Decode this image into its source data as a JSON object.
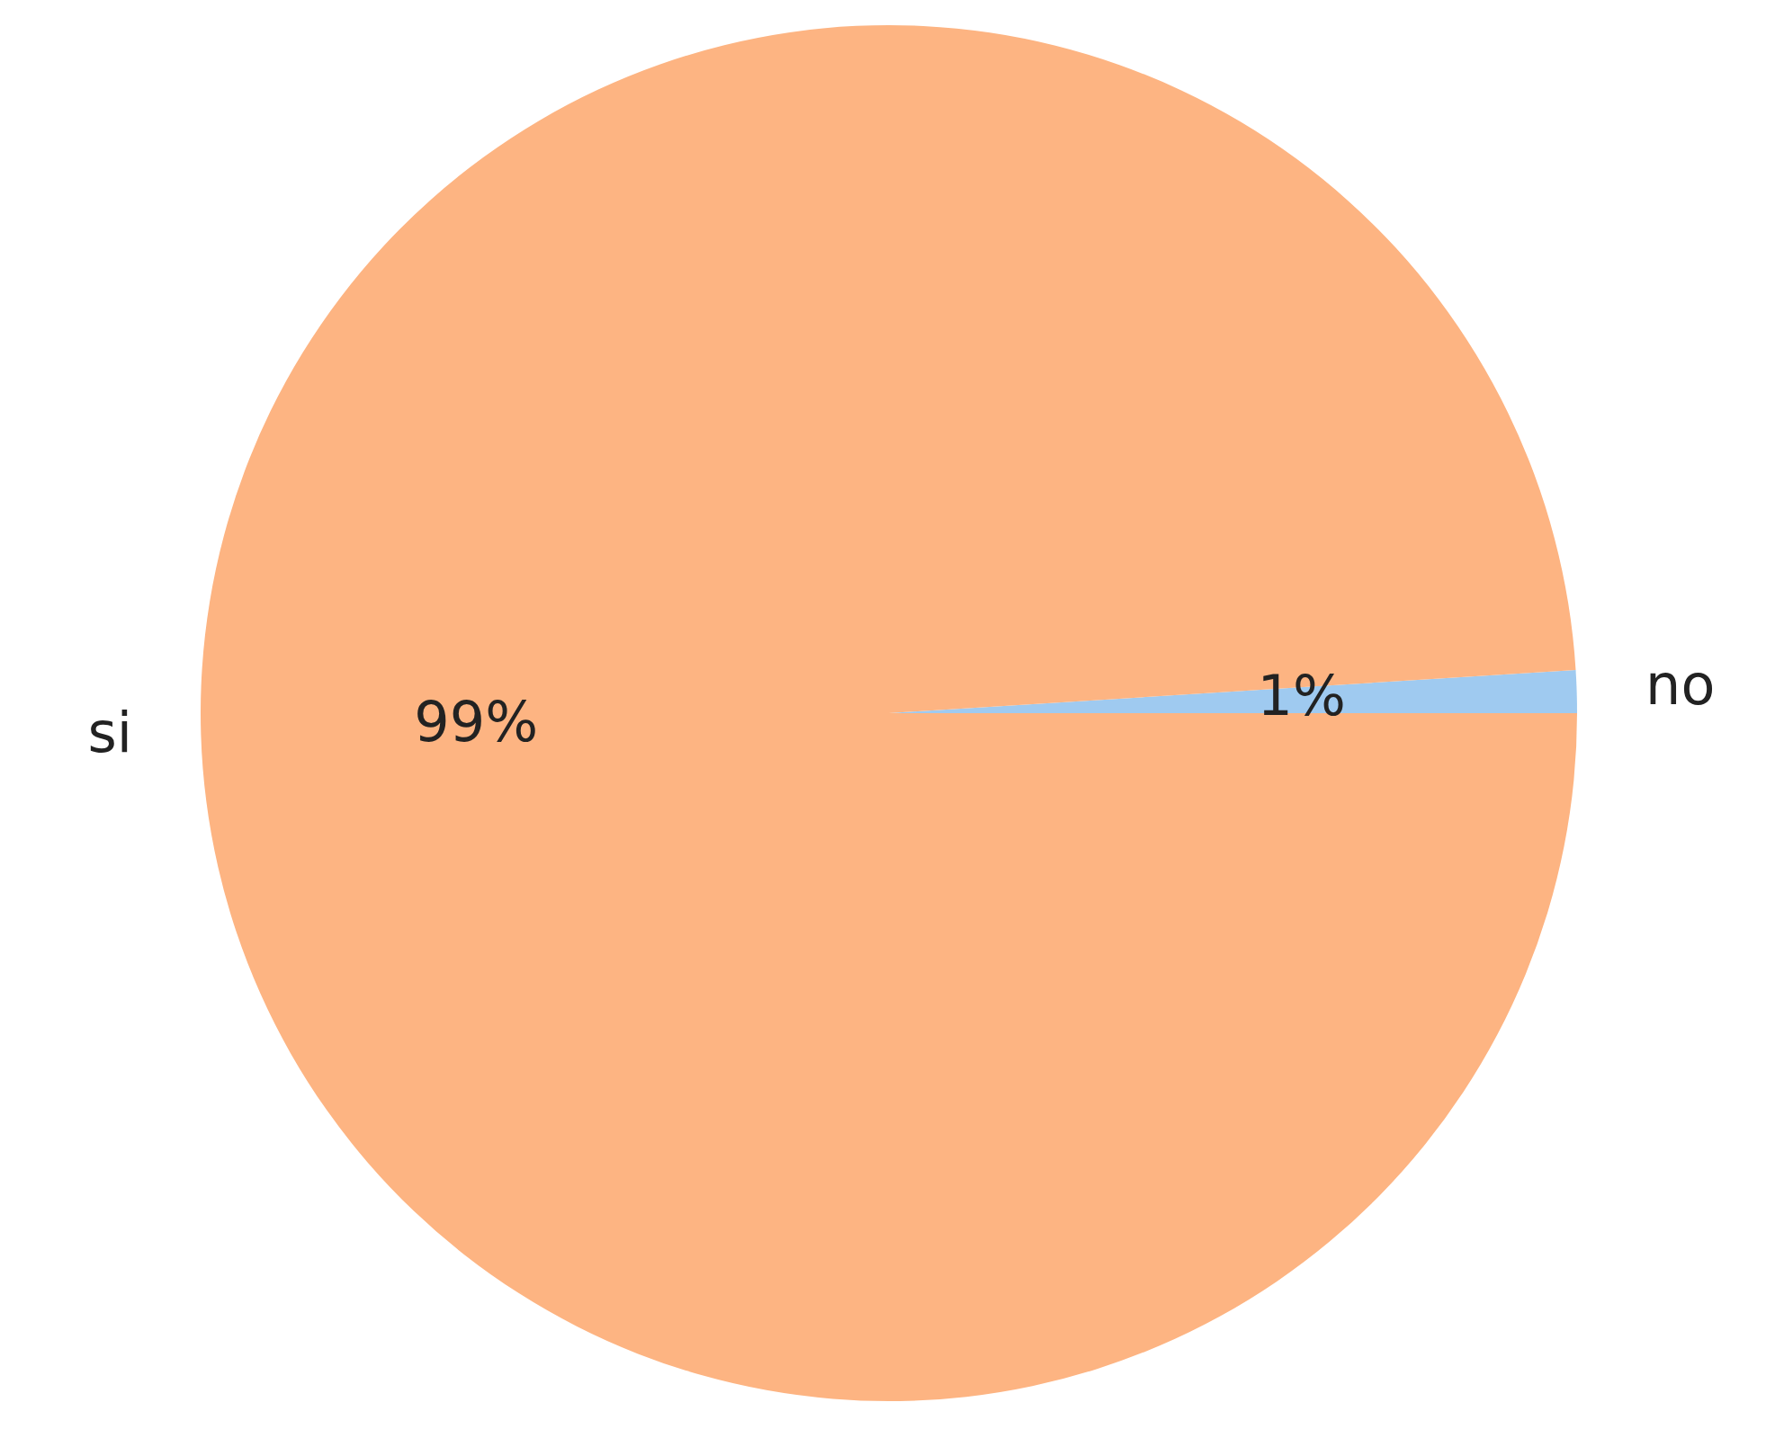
{
  "chart_data": {
    "type": "pie",
    "categories": [
      "no",
      "si"
    ],
    "values": [
      1,
      99
    ],
    "colors": [
      "#9fcaf0",
      "#fdb482"
    ],
    "value_labels": [
      "1%",
      "99%"
    ],
    "legend": false
  }
}
